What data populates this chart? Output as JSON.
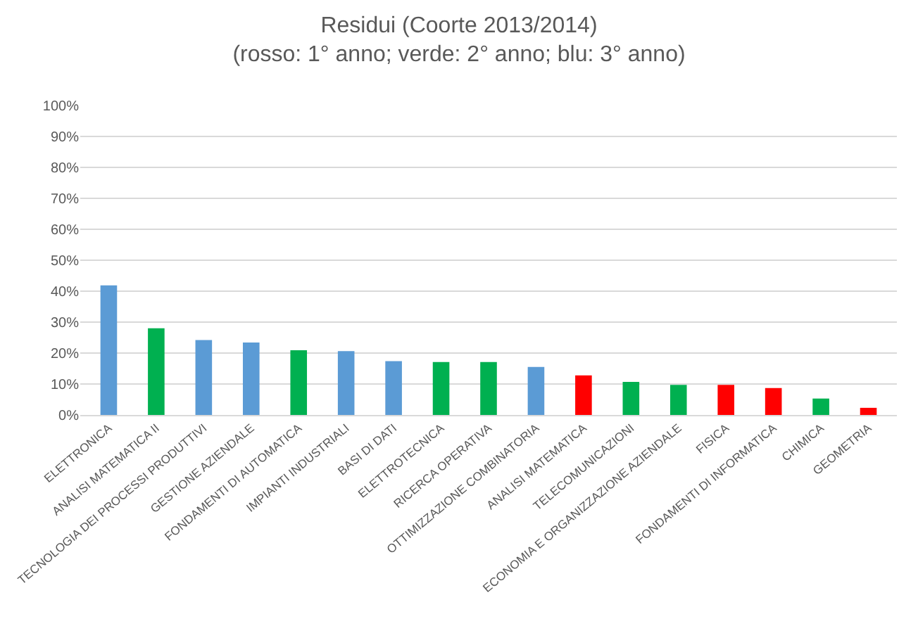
{
  "chart_data": {
    "type": "bar",
    "title": "Residui (Coorte 2013/2014)",
    "subtitle": "(rosso: 1° anno; verde: 2° anno; blu: 3° anno)",
    "categories": [
      "ELETTRONICA",
      "ANALISI MATEMATICA II",
      "TECNOLOGIA DEI PROCESSI PRODUTTIVI",
      "GESTIONE AZIENDALE",
      "FONDAMENTI DI AUTOMATICA",
      "IMPIANTI INDUSTRIALI",
      "BASI DI DATI",
      "ELETTROTECNICA",
      "RICERCA OPERATIVA",
      "OTTIMIZZAZIONE COMBINATORIA",
      "ANALISI MATEMATICA",
      "TELECOMUNICAZIONI",
      "ECONOMIA E ORGANIZZAZIONE AZIENDALE",
      "FISICA",
      "FONDAMENTI DI INFORMATICA",
      "CHIMICA",
      "GEOMETRIA"
    ],
    "values": [
      41.9,
      28.0,
      24.2,
      23.4,
      20.9,
      20.6,
      17.4,
      17.1,
      17.1,
      15.5,
      12.8,
      10.7,
      9.7,
      9.7,
      8.7,
      5.3,
      2.3
    ],
    "colors": [
      "#5b9bd5",
      "#00b050",
      "#5b9bd5",
      "#5b9bd5",
      "#00b050",
      "#5b9bd5",
      "#5b9bd5",
      "#00b050",
      "#00b050",
      "#5b9bd5",
      "#ff0000",
      "#00b050",
      "#00b050",
      "#ff0000",
      "#ff0000",
      "#00b050",
      "#ff0000"
    ],
    "ylim": [
      0,
      100
    ],
    "yticks": [
      {
        "value": 0,
        "label": "0%"
      },
      {
        "value": 10,
        "label": "10%"
      },
      {
        "value": 20,
        "label": "20%"
      },
      {
        "value": 30,
        "label": "30%"
      },
      {
        "value": 40,
        "label": "40%"
      },
      {
        "value": 50,
        "label": "50%"
      },
      {
        "value": 60,
        "label": "60%"
      },
      {
        "value": 70,
        "label": "70%"
      },
      {
        "value": 80,
        "label": "80%"
      },
      {
        "value": 90,
        "label": "90%"
      },
      {
        "value": 100,
        "label": "100%"
      }
    ],
    "grid": "y"
  }
}
